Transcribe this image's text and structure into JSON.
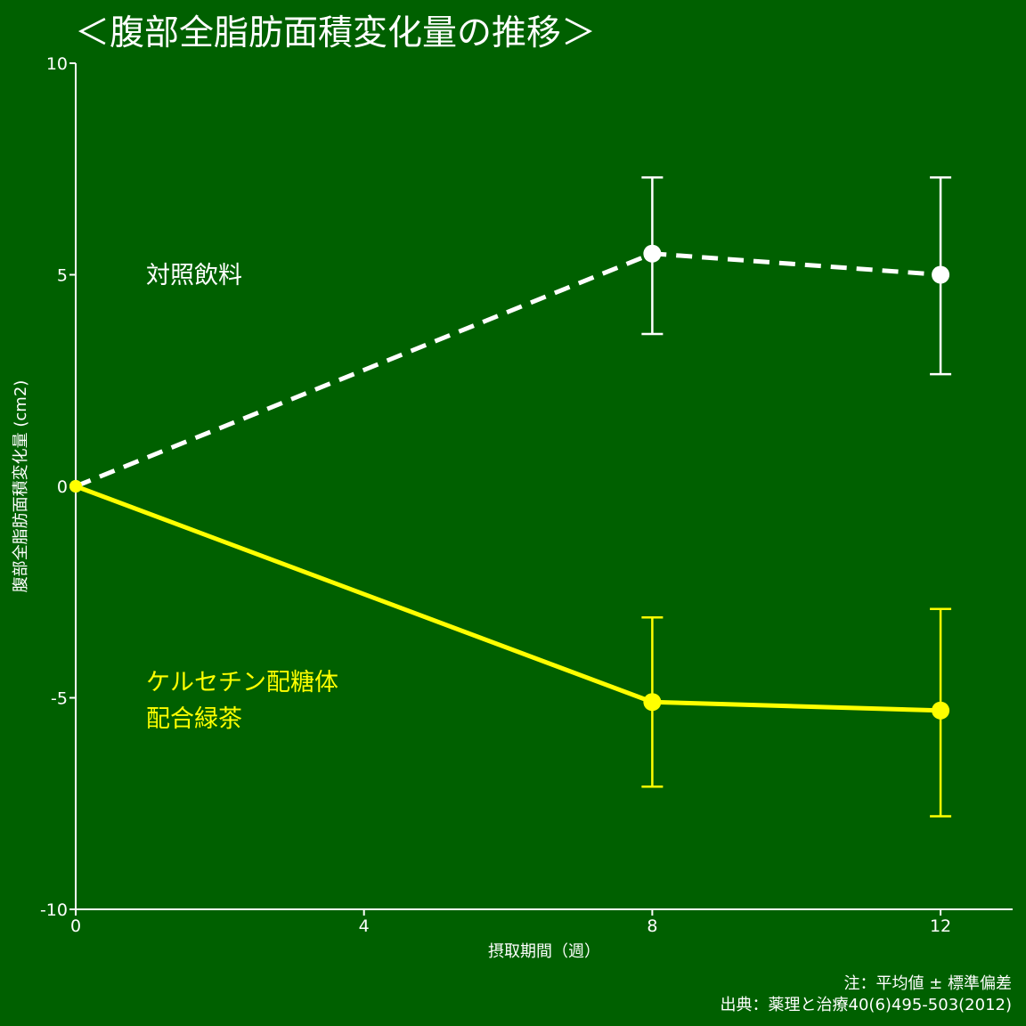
{
  "chart_data": {
    "type": "line",
    "title": "＜腹部全脂肪面積変化量の推移＞",
    "xlabel": "摂取期間（週）",
    "ylabel": "腹部全脂肪面積変化量 (cm2)",
    "x": [
      0,
      8,
      12
    ],
    "xticks": [
      0,
      4,
      8,
      12
    ],
    "xlim": [
      0,
      13
    ],
    "yticks": [
      -10,
      -5,
      0,
      5,
      10
    ],
    "ylim": [
      -10,
      10
    ],
    "series": [
      {
        "name": "対照飲料",
        "color": "#ffffff",
        "line_style": "dashed",
        "values": [
          0,
          5.5,
          5.0
        ],
        "error_low": [
          null,
          3.6,
          2.65
        ],
        "error_high": [
          null,
          7.3,
          7.3
        ]
      },
      {
        "name": "ケルセチン配糖体配合緑茶",
        "name_lines": [
          "ケルセチン配糖体",
          "配合緑茶"
        ],
        "color": "#ffff00",
        "line_style": "solid",
        "values": [
          0,
          -5.1,
          -5.3
        ],
        "error_low": [
          null,
          -7.1,
          -7.8
        ],
        "error_high": [
          null,
          -3.1,
          -2.9
        ]
      }
    ],
    "grid": false,
    "legend": "inline labels"
  },
  "notes": {
    "stat": "注：平均値 ± 標準偏差",
    "source": "出典：薬理と治療40(6)495-503(2012)"
  },
  "colors": {
    "background": "#006000",
    "axis": "#ffffff",
    "control": "#ffffff",
    "treatment": "#ffff00"
  }
}
